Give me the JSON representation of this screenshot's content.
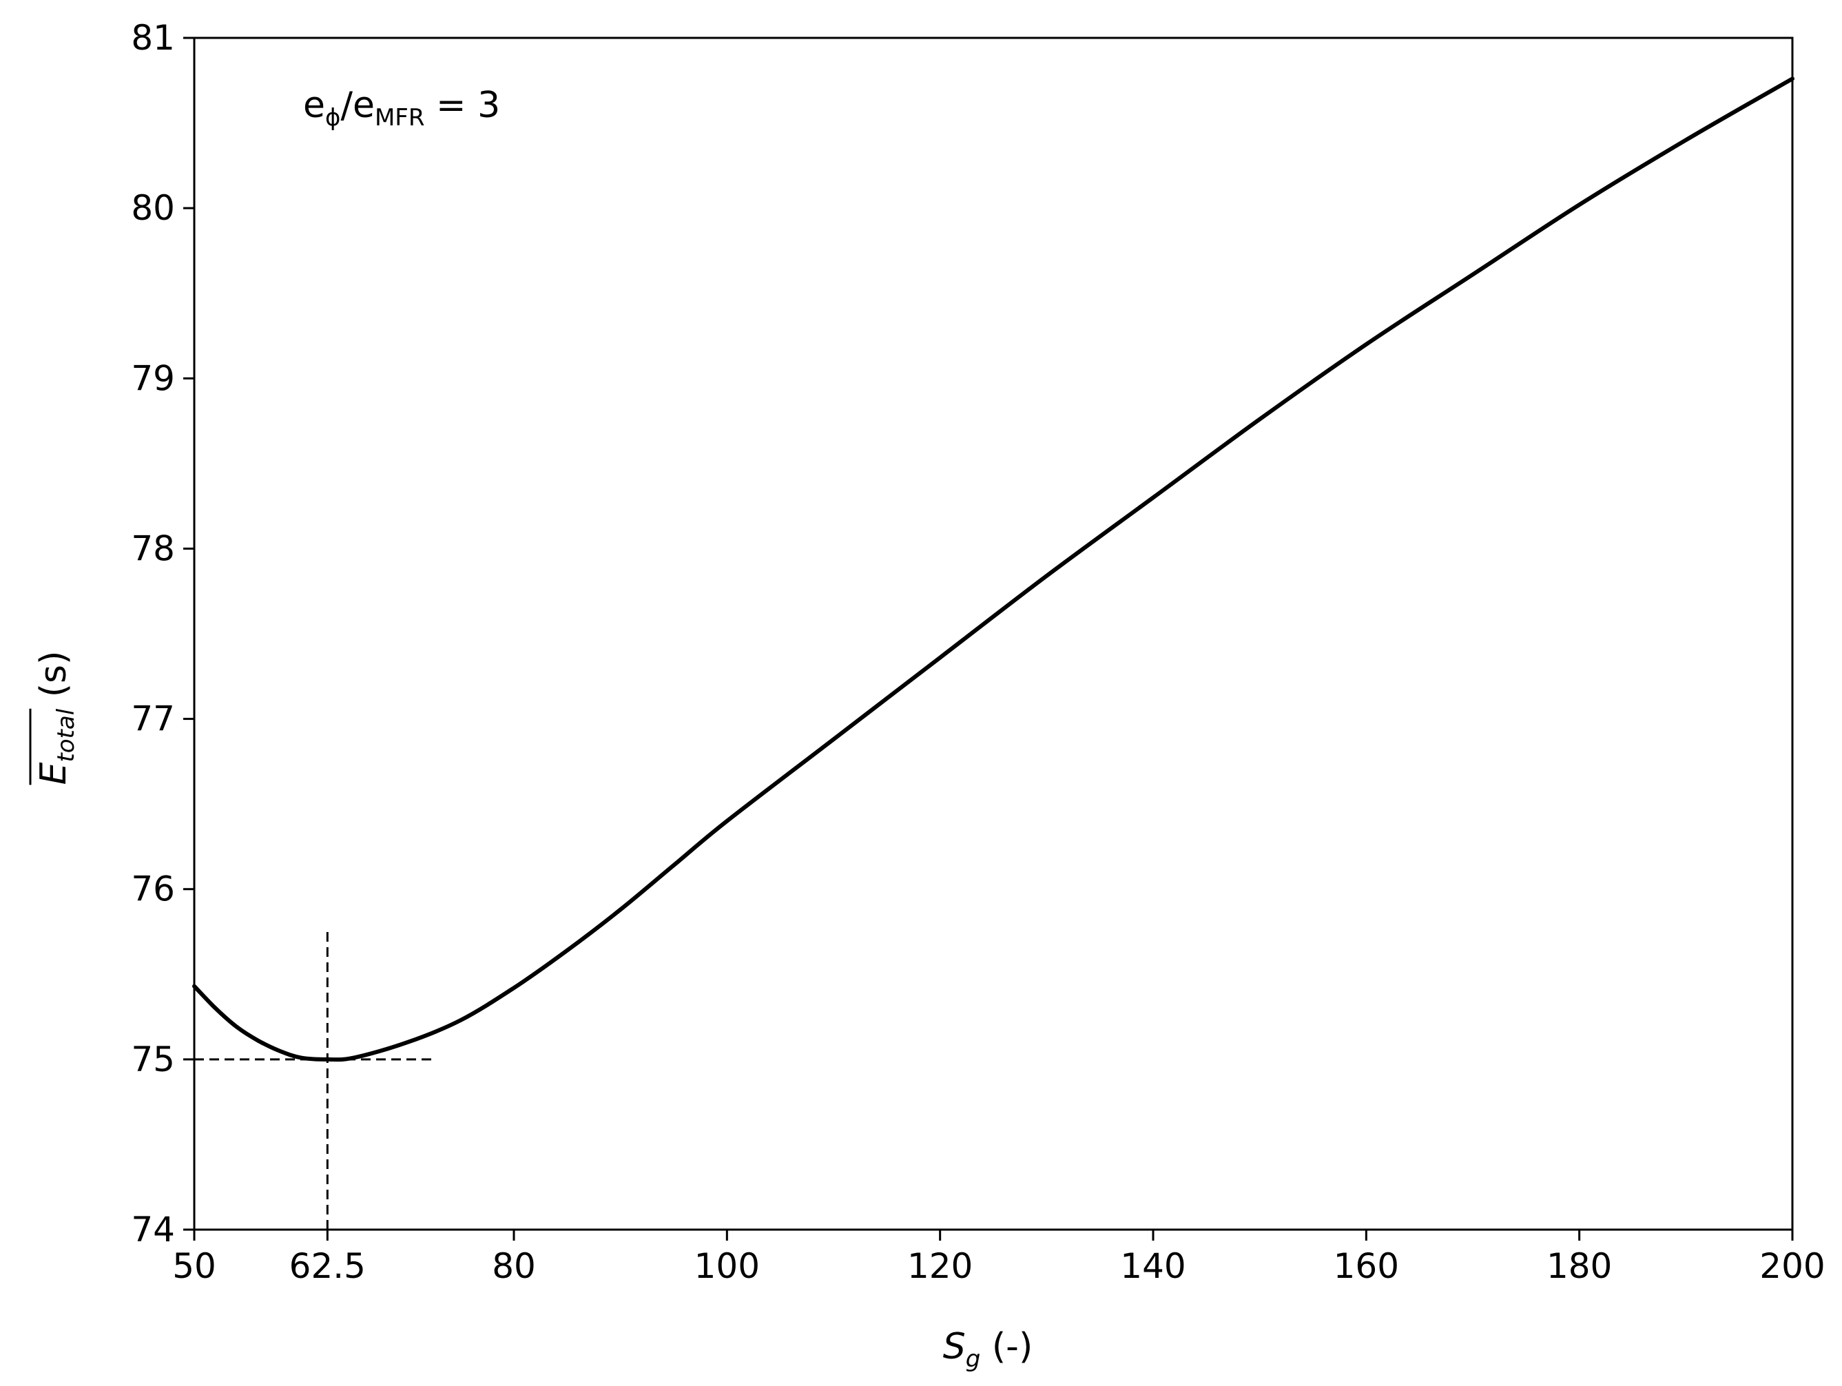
{
  "chart_data": {
    "type": "line",
    "title": "",
    "xlabel": {
      "main": "S",
      "sub": "g",
      "suffix": " (-)"
    },
    "ylabel": {
      "main": "E",
      "sub": "total",
      "suffix": " (s)",
      "overline": true
    },
    "annotation": {
      "numerator": "e",
      "numerator_sub": "ϕ",
      "slash": "/",
      "denominator": "e",
      "denominator_sub": "MFR",
      "equals": " = ",
      "value": "3"
    },
    "xlim": [
      50,
      200
    ],
    "ylim": [
      74,
      81
    ],
    "xticks": [
      {
        "value": 50,
        "label": "50"
      },
      {
        "value": 62.5,
        "label": "62.5"
      },
      {
        "value": 80,
        "label": "80"
      },
      {
        "value": 100,
        "label": "100"
      },
      {
        "value": 120,
        "label": "120"
      },
      {
        "value": 140,
        "label": "140"
      },
      {
        "value": 160,
        "label": "160"
      },
      {
        "value": 180,
        "label": "180"
      },
      {
        "value": 200,
        "label": "200"
      }
    ],
    "yticks": [
      {
        "value": 74,
        "label": "74"
      },
      {
        "value": 75,
        "label": "75"
      },
      {
        "value": 76,
        "label": "76"
      },
      {
        "value": 77,
        "label": "77"
      },
      {
        "value": 78,
        "label": "78"
      },
      {
        "value": 79,
        "label": "79"
      },
      {
        "value": 80,
        "label": "80"
      },
      {
        "value": 81,
        "label": "81"
      }
    ],
    "series": [
      {
        "color": "#000000",
        "style": "solid",
        "x": [
          50,
          52,
          54,
          56,
          58,
          60,
          62.5,
          65,
          70,
          75,
          80,
          85,
          90,
          95,
          100,
          110,
          120,
          130,
          140,
          150,
          160,
          170,
          180,
          190,
          200
        ],
        "y": [
          75.43,
          75.3,
          75.19,
          75.11,
          75.05,
          75.01,
          75.0,
          75.01,
          75.1,
          75.23,
          75.42,
          75.64,
          75.88,
          76.14,
          76.4,
          76.88,
          77.36,
          77.84,
          78.3,
          78.76,
          79.2,
          79.61,
          80.02,
          80.4,
          80.76
        ]
      }
    ],
    "reference_lines": [
      {
        "orientation": "horizontal",
        "value": 75,
        "from": 50,
        "to": 72.5,
        "style": "dashed",
        "color": "#000000"
      },
      {
        "orientation": "vertical",
        "value": 62.5,
        "from": 74,
        "to": 75.75,
        "style": "dashed",
        "color": "#000000"
      }
    ],
    "grid": false,
    "legend": "none"
  }
}
